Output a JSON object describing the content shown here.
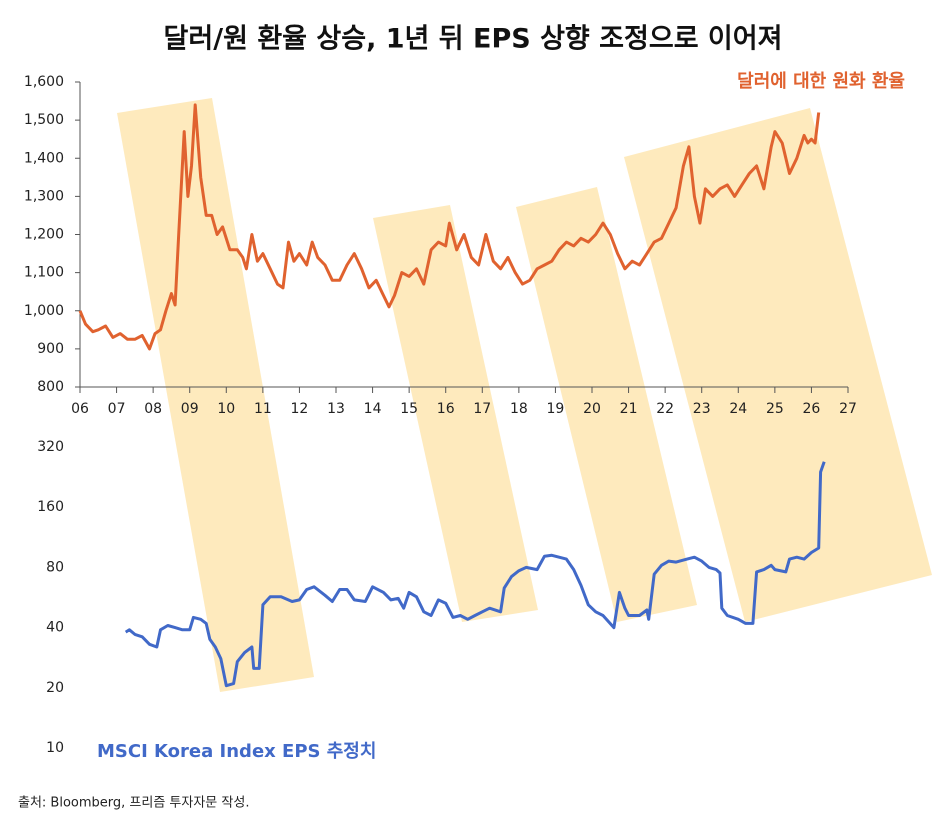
{
  "title": "달러/원 환율 상승, 1년 뒤 EPS 상향 조정으로 이어져",
  "source": "출처: Bloomberg, 프리즘 투자자문 작성.",
  "chart_data": [
    {
      "type": "line",
      "xlim": [
        6,
        27
      ],
      "xticks": [
        {
          "value": 6,
          "label": "06"
        },
        {
          "value": 7,
          "label": "07"
        },
        {
          "value": 8,
          "label": "08"
        },
        {
          "value": 9,
          "label": "09"
        },
        10,
        11,
        12,
        13,
        14,
        15,
        16,
        17,
        18,
        19,
        20,
        21,
        22,
        23,
        24,
        25,
        26,
        27
      ],
      "ylim": [
        800,
        1600
      ],
      "yticks": [
        800,
        900,
        {
          "value": 1000,
          "label": "1,000"
        },
        {
          "value": 1100,
          "label": "1,100"
        },
        {
          "value": 1200,
          "label": "1,200"
        },
        {
          "value": 1300,
          "label": "1,300"
        },
        {
          "value": 1400,
          "label": "1,400"
        },
        {
          "value": 1500,
          "label": "1,500"
        },
        {
          "value": 1600,
          "label": "1,600"
        }
      ],
      "x": [
        6.0,
        6.15,
        6.35,
        6.5,
        6.7,
        6.9,
        7.1,
        7.3,
        7.5,
        7.7,
        7.9,
        8.05,
        8.2,
        8.35,
        8.5,
        8.6,
        8.7,
        8.85,
        8.95,
        9.05,
        9.15,
        9.3,
        9.45,
        9.6,
        9.75,
        9.9,
        10.1,
        10.3,
        10.45,
        10.55,
        10.7,
        10.85,
        11.0,
        11.2,
        11.4,
        11.55,
        11.7,
        11.85,
        12.0,
        12.2,
        12.35,
        12.5,
        12.7,
        12.9,
        13.1,
        13.3,
        13.5,
        13.7,
        13.9,
        14.1,
        14.3,
        14.45,
        14.6,
        14.8,
        15.0,
        15.2,
        15.4,
        15.6,
        15.8,
        16.0,
        16.1,
        16.3,
        16.5,
        16.7,
        16.9,
        17.1,
        17.3,
        17.5,
        17.7,
        17.9,
        18.1,
        18.3,
        18.5,
        18.7,
        18.9,
        19.1,
        19.3,
        19.5,
        19.7,
        19.9,
        20.1,
        20.3,
        20.5,
        20.7,
        20.9,
        21.1,
        21.3,
        21.5,
        21.7,
        21.9,
        22.1,
        22.3,
        22.5,
        22.65,
        22.8,
        22.95,
        23.1,
        23.3,
        23.5,
        23.7,
        23.9,
        24.1,
        24.3,
        24.5,
        24.7,
        24.9,
        25.0,
        25.2,
        25.4,
        25.6,
        25.8,
        25.9,
        26.0,
        26.1,
        26.2
      ],
      "series": [
        {
          "name": "달러에 대한 원화 환율",
          "color": "#e0622f",
          "values": [
            1000,
            965,
            945,
            950,
            960,
            930,
            940,
            925,
            925,
            935,
            900,
            940,
            950,
            1000,
            1045,
            1015,
            1200,
            1470,
            1300,
            1380,
            1540,
            1350,
            1250,
            1250,
            1200,
            1220,
            1160,
            1160,
            1140,
            1110,
            1200,
            1130,
            1150,
            1110,
            1070,
            1060,
            1180,
            1130,
            1150,
            1120,
            1180,
            1140,
            1120,
            1080,
            1080,
            1120,
            1150,
            1110,
            1060,
            1080,
            1040,
            1010,
            1040,
            1100,
            1090,
            1110,
            1070,
            1160,
            1180,
            1170,
            1230,
            1160,
            1200,
            1140,
            1120,
            1200,
            1130,
            1110,
            1140,
            1100,
            1070,
            1080,
            1110,
            1120,
            1130,
            1160,
            1180,
            1170,
            1190,
            1180,
            1200,
            1230,
            1200,
            1150,
            1110,
            1130,
            1120,
            1150,
            1180,
            1190,
            1230,
            1270,
            1380,
            1430,
            1300,
            1230,
            1320,
            1300,
            1320,
            1330,
            1300,
            1330,
            1360,
            1380,
            1320,
            1430,
            1470,
            1440,
            1360,
            1400,
            1460,
            1440,
            1450,
            1440,
            1520
          ]
        }
      ]
    },
    {
      "type": "line",
      "yscale": "log",
      "xlim": [
        6,
        27
      ],
      "ylim": [
        10,
        320
      ],
      "yticks": [
        10,
        20,
        40,
        80,
        160,
        320
      ],
      "x": [
        7.25,
        7.35,
        7.5,
        7.7,
        7.9,
        8.1,
        8.2,
        8.4,
        8.6,
        8.8,
        9.0,
        9.1,
        9.3,
        9.45,
        9.55,
        9.7,
        9.85,
        10.0,
        10.2,
        10.3,
        10.5,
        10.7,
        10.75,
        10.9,
        11.0,
        11.2,
        11.5,
        11.8,
        12.0,
        12.2,
        12.4,
        12.7,
        12.9,
        13.1,
        13.3,
        13.5,
        13.8,
        14.0,
        14.3,
        14.5,
        14.7,
        14.85,
        15.0,
        15.2,
        15.4,
        15.6,
        15.8,
        16.0,
        16.2,
        16.4,
        16.6,
        16.8,
        17.0,
        17.2,
        17.5,
        17.6,
        17.8,
        18.0,
        18.2,
        18.5,
        18.7,
        18.9,
        19.1,
        19.3,
        19.5,
        19.7,
        19.9,
        20.1,
        20.3,
        20.6,
        20.75,
        20.9,
        21.0,
        21.3,
        21.5,
        21.55,
        21.7,
        21.9,
        22.1,
        22.3,
        22.6,
        22.8,
        23.0,
        23.2,
        23.4,
        23.5,
        23.55,
        23.7,
        24.0,
        24.2,
        24.4,
        24.5,
        24.7,
        24.9,
        25.0,
        25.3,
        25.4,
        25.6,
        25.8,
        26.0,
        26.2,
        26.25,
        26.35
      ],
      "series": [
        {
          "name": "MSCI Korea Index EPS 추정치",
          "color": "#4169c8",
          "values": [
            38,
            39,
            37,
            36,
            33,
            32,
            39,
            41,
            40,
            39,
            39,
            45,
            44,
            42,
            35,
            32,
            28,
            20.5,
            21,
            27,
            30,
            32,
            25,
            25,
            52,
            57,
            57,
            54,
            55,
            62,
            64,
            58,
            54,
            62,
            62,
            55,
            54,
            64,
            60,
            55,
            56,
            50,
            60,
            57,
            48,
            46,
            55,
            53,
            45,
            46,
            44,
            46,
            48,
            50,
            48,
            63,
            72,
            77,
            80,
            78,
            91,
            92,
            90,
            88,
            78,
            65,
            52,
            48,
            46,
            40,
            60,
            50,
            46,
            46,
            49,
            44,
            74,
            82,
            86,
            85,
            88,
            90,
            86,
            80,
            78,
            75,
            50,
            46,
            44,
            42,
            42,
            76,
            78,
            82,
            78,
            76,
            88,
            90,
            88,
            95,
            100,
            240,
            270
          ]
        }
      ]
    }
  ]
}
